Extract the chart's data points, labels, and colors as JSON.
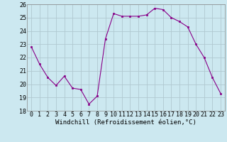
{
  "x": [
    0,
    1,
    2,
    3,
    4,
    5,
    6,
    7,
    8,
    9,
    10,
    11,
    12,
    13,
    14,
    15,
    16,
    17,
    18,
    19,
    20,
    21,
    22,
    23
  ],
  "y": [
    22.8,
    21.5,
    20.5,
    19.9,
    20.6,
    19.7,
    19.6,
    18.5,
    19.1,
    23.4,
    25.3,
    25.1,
    25.1,
    25.1,
    25.2,
    25.7,
    25.6,
    25.0,
    24.7,
    24.3,
    23.0,
    22.0,
    20.5,
    19.3
  ],
  "xlabel": "Windchill (Refroidissement éolien,°C)",
  "ylim": [
    18,
    26
  ],
  "xlim": [
    -0.5,
    23.5
  ],
  "yticks": [
    18,
    19,
    20,
    21,
    22,
    23,
    24,
    25,
    26
  ],
  "xticks": [
    0,
    1,
    2,
    3,
    4,
    5,
    6,
    7,
    8,
    9,
    10,
    11,
    12,
    13,
    14,
    15,
    16,
    17,
    18,
    19,
    20,
    21,
    22,
    23
  ],
  "line_color": "#880088",
  "marker": "s",
  "marker_size": 2,
  "bg_color": "#cce8f0",
  "grid_color": "#b0c8d0",
  "font_family": "monospace",
  "tick_fontsize": 6,
  "xlabel_fontsize": 6.5
}
